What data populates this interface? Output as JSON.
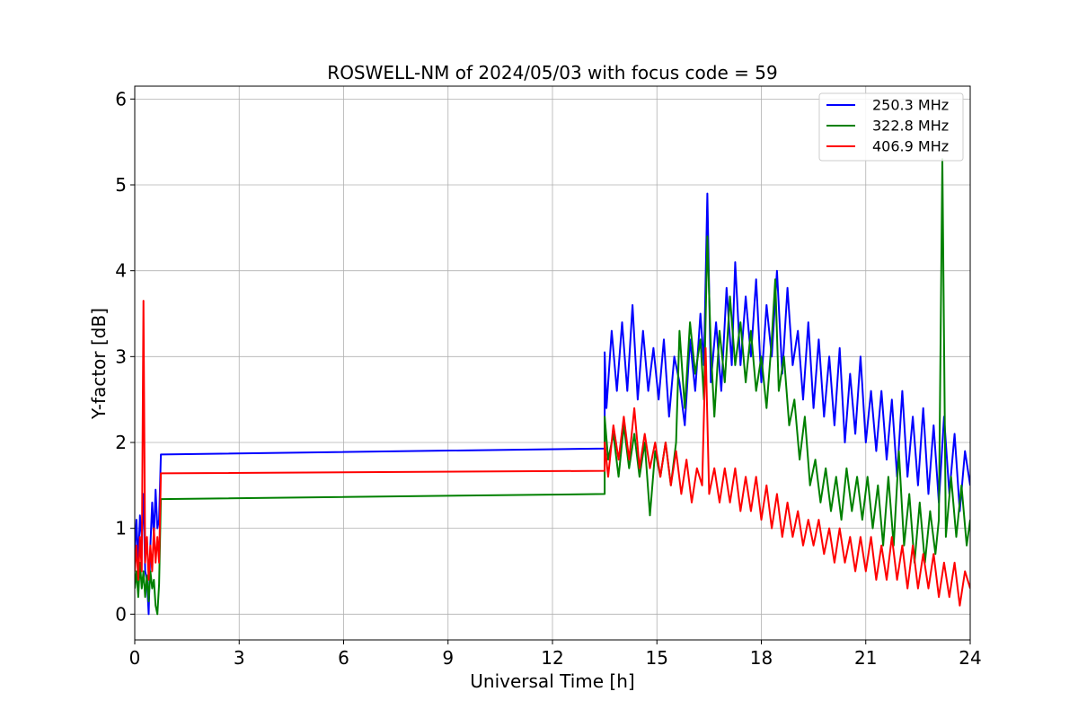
{
  "chart_data": {
    "type": "line",
    "title": "ROSWELL-NM of 2024/05/03 with focus code = 59",
    "xlabel": "Universal Time [h]",
    "ylabel": "Y-factor [dB]",
    "xlim": [
      0,
      24
    ],
    "ylim": [
      -0.3,
      6.15
    ],
    "xticks": [
      "0",
      "3",
      "6",
      "9",
      "12",
      "15",
      "18",
      "21",
      "24"
    ],
    "yticks": [
      "0",
      "1",
      "2",
      "3",
      "4",
      "5",
      "6"
    ],
    "grid": true,
    "legend_position": "top-right",
    "series": [
      {
        "name": "250.3 MHz",
        "color": "#0000ff",
        "points": [
          [
            0.0,
            0.7
          ],
          [
            0.05,
            1.1
          ],
          [
            0.1,
            0.6
          ],
          [
            0.15,
            1.15
          ],
          [
            0.2,
            0.9
          ],
          [
            0.25,
            1.4
          ],
          [
            0.3,
            0.5
          ],
          [
            0.35,
            0.4
          ],
          [
            0.4,
            0.0
          ],
          [
            0.45,
            0.8
          ],
          [
            0.5,
            1.3
          ],
          [
            0.55,
            0.9
          ],
          [
            0.6,
            1.45
          ],
          [
            0.65,
            1.0
          ],
          [
            0.7,
            1.1
          ],
          [
            0.75,
            1.86
          ],
          [
            13.5,
            1.93
          ],
          [
            13.5,
            3.05
          ],
          [
            13.55,
            2.4
          ],
          [
            13.7,
            3.3
          ],
          [
            13.85,
            2.6
          ],
          [
            14.0,
            3.4
          ],
          [
            14.15,
            2.6
          ],
          [
            14.3,
            3.6
          ],
          [
            14.45,
            2.5
          ],
          [
            14.6,
            3.3
          ],
          [
            14.75,
            2.6
          ],
          [
            14.9,
            3.1
          ],
          [
            15.05,
            2.5
          ],
          [
            15.2,
            3.2
          ],
          [
            15.35,
            2.3
          ],
          [
            15.5,
            3.0
          ],
          [
            15.65,
            2.7
          ],
          [
            15.8,
            2.2
          ],
          [
            15.95,
            3.2
          ],
          [
            16.1,
            2.6
          ],
          [
            16.25,
            3.5
          ],
          [
            16.35,
            2.9
          ],
          [
            16.45,
            4.9
          ],
          [
            16.55,
            2.7
          ],
          [
            16.7,
            3.4
          ],
          [
            16.85,
            2.6
          ],
          [
            17.0,
            3.8
          ],
          [
            17.15,
            2.9
          ],
          [
            17.25,
            4.1
          ],
          [
            17.4,
            2.9
          ],
          [
            17.55,
            3.7
          ],
          [
            17.7,
            3.0
          ],
          [
            17.85,
            3.9
          ],
          [
            18.0,
            2.7
          ],
          [
            18.15,
            3.6
          ],
          [
            18.3,
            3.0
          ],
          [
            18.45,
            4.0
          ],
          [
            18.6,
            2.8
          ],
          [
            18.75,
            3.8
          ],
          [
            18.9,
            2.9
          ],
          [
            19.05,
            3.3
          ],
          [
            19.2,
            2.5
          ],
          [
            19.35,
            3.4
          ],
          [
            19.5,
            2.4
          ],
          [
            19.65,
            3.2
          ],
          [
            19.8,
            2.3
          ],
          [
            19.95,
            3.0
          ],
          [
            20.1,
            2.2
          ],
          [
            20.25,
            3.1
          ],
          [
            20.4,
            2.0
          ],
          [
            20.55,
            2.8
          ],
          [
            20.7,
            2.1
          ],
          [
            20.85,
            3.0
          ],
          [
            21.0,
            2.0
          ],
          [
            21.15,
            2.6
          ],
          [
            21.3,
            1.9
          ],
          [
            21.45,
            2.6
          ],
          [
            21.6,
            1.8
          ],
          [
            21.75,
            2.5
          ],
          [
            21.9,
            1.6
          ],
          [
            22.05,
            2.6
          ],
          [
            22.2,
            1.6
          ],
          [
            22.35,
            2.3
          ],
          [
            22.5,
            1.5
          ],
          [
            22.65,
            2.4
          ],
          [
            22.8,
            1.4
          ],
          [
            22.95,
            2.2
          ],
          [
            23.1,
            1.3
          ],
          [
            23.25,
            2.3
          ],
          [
            23.4,
            1.4
          ],
          [
            23.55,
            2.1
          ],
          [
            23.7,
            1.2
          ],
          [
            23.85,
            1.9
          ],
          [
            24.0,
            1.5
          ]
        ]
      },
      {
        "name": "322.8 MHz",
        "color": "#008000",
        "points": [
          [
            0.0,
            0.3
          ],
          [
            0.05,
            0.5
          ],
          [
            0.1,
            0.2
          ],
          [
            0.15,
            0.6
          ],
          [
            0.2,
            0.3
          ],
          [
            0.25,
            0.5
          ],
          [
            0.3,
            0.2
          ],
          [
            0.35,
            0.45
          ],
          [
            0.4,
            0.15
          ],
          [
            0.45,
            0.5
          ],
          [
            0.5,
            0.3
          ],
          [
            0.55,
            0.4
          ],
          [
            0.6,
            0.1
          ],
          [
            0.65,
            0.0
          ],
          [
            0.7,
            0.35
          ],
          [
            0.75,
            1.34
          ],
          [
            13.5,
            1.4
          ],
          [
            13.5,
            2.3
          ],
          [
            13.6,
            1.8
          ],
          [
            13.75,
            2.1
          ],
          [
            13.9,
            1.6
          ],
          [
            14.05,
            2.2
          ],
          [
            14.2,
            1.7
          ],
          [
            14.35,
            2.1
          ],
          [
            14.5,
            1.6
          ],
          [
            14.65,
            2.0
          ],
          [
            14.8,
            1.15
          ],
          [
            14.95,
            1.9
          ],
          [
            15.1,
            1.6
          ],
          [
            15.25,
            2.0
          ],
          [
            15.4,
            1.5
          ],
          [
            15.55,
            2.0
          ],
          [
            15.65,
            3.3
          ],
          [
            15.8,
            2.4
          ],
          [
            15.95,
            3.4
          ],
          [
            16.1,
            2.8
          ],
          [
            16.25,
            3.2
          ],
          [
            16.35,
            2.5
          ],
          [
            16.45,
            4.4
          ],
          [
            16.55,
            3.1
          ],
          [
            16.65,
            2.3
          ],
          [
            16.8,
            3.3
          ],
          [
            16.95,
            2.7
          ],
          [
            17.1,
            3.7
          ],
          [
            17.25,
            2.9
          ],
          [
            17.4,
            3.4
          ],
          [
            17.55,
            2.7
          ],
          [
            17.7,
            3.3
          ],
          [
            17.85,
            2.6
          ],
          [
            18.0,
            3.0
          ],
          [
            18.15,
            2.4
          ],
          [
            18.3,
            3.2
          ],
          [
            18.4,
            3.9
          ],
          [
            18.5,
            2.6
          ],
          [
            18.65,
            3.0
          ],
          [
            18.8,
            2.2
          ],
          [
            18.95,
            2.5
          ],
          [
            19.1,
            1.8
          ],
          [
            19.25,
            2.3
          ],
          [
            19.4,
            1.5
          ],
          [
            19.55,
            1.8
          ],
          [
            19.7,
            1.3
          ],
          [
            19.85,
            1.7
          ],
          [
            20.0,
            1.2
          ],
          [
            20.15,
            1.6
          ],
          [
            20.3,
            1.1
          ],
          [
            20.45,
            1.7
          ],
          [
            20.6,
            1.2
          ],
          [
            20.75,
            1.6
          ],
          [
            20.9,
            1.1
          ],
          [
            21.05,
            1.6
          ],
          [
            21.2,
            1.0
          ],
          [
            21.35,
            1.5
          ],
          [
            21.5,
            0.8
          ],
          [
            21.65,
            1.6
          ],
          [
            21.8,
            0.8
          ],
          [
            21.95,
            1.9
          ],
          [
            22.1,
            0.8
          ],
          [
            22.25,
            1.4
          ],
          [
            22.4,
            0.6
          ],
          [
            22.55,
            1.3
          ],
          [
            22.7,
            0.6
          ],
          [
            22.85,
            1.2
          ],
          [
            23.0,
            0.7
          ],
          [
            23.1,
            1.1
          ],
          [
            23.2,
            5.3
          ],
          [
            23.3,
            0.9
          ],
          [
            23.45,
            1.6
          ],
          [
            23.6,
            0.9
          ],
          [
            23.75,
            1.5
          ],
          [
            23.9,
            0.8
          ],
          [
            24.0,
            1.1
          ]
        ]
      },
      {
        "name": "406.9 MHz",
        "color": "#ff0000",
        "points": [
          [
            0.0,
            0.5
          ],
          [
            0.05,
            0.8
          ],
          [
            0.1,
            0.4
          ],
          [
            0.15,
            0.9
          ],
          [
            0.2,
            0.5
          ],
          [
            0.25,
            3.65
          ],
          [
            0.3,
            0.6
          ],
          [
            0.35,
            0.9
          ],
          [
            0.4,
            0.4
          ],
          [
            0.45,
            0.8
          ],
          [
            0.5,
            0.5
          ],
          [
            0.55,
            1.0
          ],
          [
            0.6,
            0.6
          ],
          [
            0.65,
            0.9
          ],
          [
            0.7,
            0.6
          ],
          [
            0.75,
            1.64
          ],
          [
            13.5,
            1.67
          ],
          [
            13.5,
            2.0
          ],
          [
            13.6,
            1.6
          ],
          [
            13.75,
            2.2
          ],
          [
            13.9,
            1.8
          ],
          [
            14.05,
            2.3
          ],
          [
            14.2,
            1.8
          ],
          [
            14.35,
            2.4
          ],
          [
            14.5,
            1.7
          ],
          [
            14.65,
            2.1
          ],
          [
            14.8,
            1.7
          ],
          [
            14.95,
            2.0
          ],
          [
            15.1,
            1.6
          ],
          [
            15.25,
            2.0
          ],
          [
            15.4,
            1.5
          ],
          [
            15.55,
            1.9
          ],
          [
            15.7,
            1.4
          ],
          [
            15.85,
            1.8
          ],
          [
            16.0,
            1.3
          ],
          [
            16.15,
            1.7
          ],
          [
            16.3,
            1.5
          ],
          [
            16.4,
            3.1
          ],
          [
            16.5,
            1.4
          ],
          [
            16.65,
            1.7
          ],
          [
            16.8,
            1.3
          ],
          [
            16.95,
            1.7
          ],
          [
            17.1,
            1.3
          ],
          [
            17.25,
            1.7
          ],
          [
            17.4,
            1.2
          ],
          [
            17.55,
            1.6
          ],
          [
            17.7,
            1.2
          ],
          [
            17.85,
            1.6
          ],
          [
            18.0,
            1.1
          ],
          [
            18.15,
            1.5
          ],
          [
            18.3,
            1.0
          ],
          [
            18.45,
            1.4
          ],
          [
            18.6,
            0.9
          ],
          [
            18.75,
            1.3
          ],
          [
            18.9,
            0.9
          ],
          [
            19.05,
            1.2
          ],
          [
            19.2,
            0.8
          ],
          [
            19.35,
            1.1
          ],
          [
            19.5,
            0.8
          ],
          [
            19.65,
            1.1
          ],
          [
            19.8,
            0.7
          ],
          [
            19.95,
            1.0
          ],
          [
            20.1,
            0.6
          ],
          [
            20.25,
            1.0
          ],
          [
            20.4,
            0.6
          ],
          [
            20.55,
            0.9
          ],
          [
            20.7,
            0.5
          ],
          [
            20.85,
            0.9
          ],
          [
            21.0,
            0.5
          ],
          [
            21.15,
            0.9
          ],
          [
            21.3,
            0.4
          ],
          [
            21.45,
            0.8
          ],
          [
            21.6,
            0.4
          ],
          [
            21.75,
            0.9
          ],
          [
            21.9,
            0.4
          ],
          [
            22.05,
            0.8
          ],
          [
            22.2,
            0.3
          ],
          [
            22.35,
            0.8
          ],
          [
            22.5,
            0.3
          ],
          [
            22.65,
            0.7
          ],
          [
            22.8,
            0.3
          ],
          [
            22.95,
            0.7
          ],
          [
            23.1,
            0.2
          ],
          [
            23.25,
            0.6
          ],
          [
            23.4,
            0.2
          ],
          [
            23.55,
            0.6
          ],
          [
            23.7,
            0.1
          ],
          [
            23.85,
            0.5
          ],
          [
            24.0,
            0.3
          ]
        ]
      }
    ]
  }
}
